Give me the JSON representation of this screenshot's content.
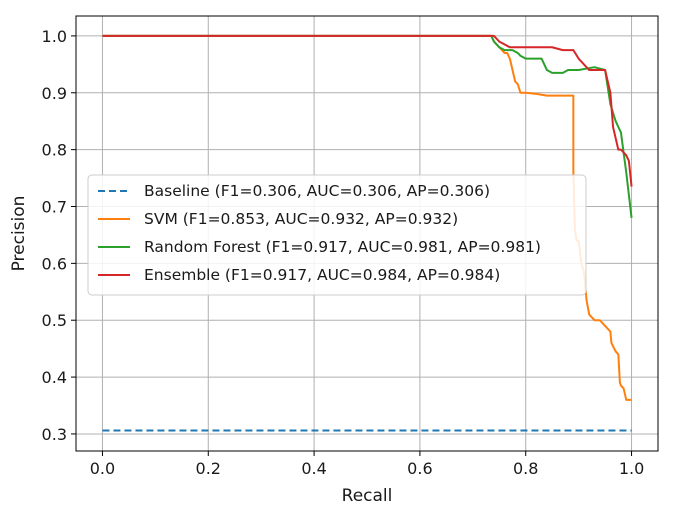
{
  "chart_data": {
    "type": "line",
    "xlabel": "Recall",
    "ylabel": "Precision",
    "xlim": [
      -0.05,
      1.05
    ],
    "ylim": [
      0.27,
      1.035
    ],
    "xticks": [
      "0.0",
      "0.2",
      "0.4",
      "0.6",
      "0.8",
      "1.0"
    ],
    "yticks": [
      "0.3",
      "0.4",
      "0.5",
      "0.6",
      "0.7",
      "0.8",
      "0.9",
      "1.0"
    ],
    "grid": true,
    "legend_position": "center-left",
    "series": [
      {
        "name": "Baseline (F1=0.306, AUC=0.306, AP=0.306)",
        "color": "#1f77b4",
        "dashed": true,
        "x": [
          0.0,
          1.0
        ],
        "y": [
          0.306,
          0.306
        ]
      },
      {
        "name": "SVM (F1=0.853, AUC=0.932, AP=0.932)",
        "color": "#ff7f0e",
        "dashed": false,
        "x": [
          0.0,
          0.735,
          0.74,
          0.745,
          0.75,
          0.755,
          0.76,
          0.765,
          0.77,
          0.775,
          0.78,
          0.785,
          0.79,
          0.8,
          0.82,
          0.84,
          0.86,
          0.89,
          0.89,
          0.893,
          0.896,
          0.9,
          0.905,
          0.91,
          0.915,
          0.92,
          0.93,
          0.94,
          0.96,
          0.962,
          0.97,
          0.975,
          0.978,
          0.98,
          0.985,
          0.99,
          0.995,
          1.0
        ],
        "y": [
          1.0,
          1.0,
          0.99,
          0.985,
          0.98,
          0.975,
          0.97,
          0.97,
          0.96,
          0.94,
          0.92,
          0.915,
          0.9,
          0.9,
          0.898,
          0.895,
          0.895,
          0.895,
          0.76,
          0.66,
          0.64,
          0.64,
          0.6,
          0.585,
          0.535,
          0.51,
          0.5,
          0.5,
          0.48,
          0.46,
          0.445,
          0.44,
          0.39,
          0.385,
          0.38,
          0.36,
          0.36,
          0.36
        ]
      },
      {
        "name": "Random Forest (F1=0.917, AUC=0.981, AP=0.981)",
        "color": "#2ca02c",
        "dashed": false,
        "x": [
          0.0,
          0.735,
          0.74,
          0.745,
          0.75,
          0.76,
          0.775,
          0.785,
          0.79,
          0.8,
          0.83,
          0.835,
          0.84,
          0.85,
          0.86,
          0.87,
          0.88,
          0.9,
          0.93,
          0.95,
          0.955,
          0.96,
          0.97,
          0.975,
          0.98,
          0.99,
          0.995,
          1.0
        ],
        "y": [
          1.0,
          1.0,
          0.99,
          0.985,
          0.98,
          0.975,
          0.975,
          0.97,
          0.965,
          0.96,
          0.96,
          0.95,
          0.94,
          0.935,
          0.935,
          0.935,
          0.94,
          0.94,
          0.945,
          0.94,
          0.91,
          0.88,
          0.85,
          0.84,
          0.83,
          0.76,
          0.72,
          0.68
        ]
      },
      {
        "name": "Ensemble (F1=0.917, AUC=0.984, AP=0.984)",
        "color": "#d62728",
        "dashed": false,
        "x": [
          0.0,
          0.74,
          0.745,
          0.75,
          0.76,
          0.77,
          0.78,
          0.79,
          0.8,
          0.82,
          0.83,
          0.85,
          0.87,
          0.88,
          0.89,
          0.9,
          0.92,
          0.94,
          0.95,
          0.955,
          0.96,
          0.965,
          0.97,
          0.975,
          0.98,
          0.99,
          0.995,
          1.0
        ],
        "y": [
          1.0,
          1.0,
          0.995,
          0.99,
          0.985,
          0.98,
          0.98,
          0.98,
          0.98,
          0.98,
          0.98,
          0.98,
          0.975,
          0.975,
          0.975,
          0.96,
          0.94,
          0.94,
          0.94,
          0.92,
          0.9,
          0.84,
          0.82,
          0.8,
          0.8,
          0.79,
          0.78,
          0.735
        ]
      }
    ]
  }
}
